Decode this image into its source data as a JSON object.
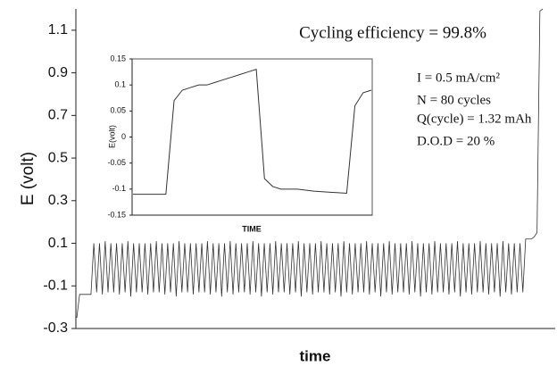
{
  "chart_data": [
    {
      "type": "line",
      "y_label": "E (volt)",
      "x_label": "time",
      "color": "#333333",
      "annotations": [
        "Cycling efficiency = 99.8%",
        "I = 0.5 mA/cm²",
        "N = 80 cycles",
        "Q(cycle) = 1.32 mAh",
        "D.O.D = 20 %"
      ],
      "ylim": [
        -0.3,
        1.2
      ],
      "yticks": [
        -0.3,
        -0.1,
        0.1,
        0.3,
        0.5,
        0.7,
        0.9,
        1.1
      ],
      "values": [
        -0.25,
        -0.14,
        -0.14,
        -0.14,
        -0.14,
        -0.14,
        0.1,
        -0.13,
        0.1,
        -0.14,
        0.11,
        -0.13,
        0.1,
        -0.13,
        0.1,
        -0.14,
        0.1,
        -0.13,
        0.11,
        -0.15,
        0.1,
        -0.13,
        0.1,
        -0.13,
        0.1,
        -0.14,
        0.1,
        -0.13,
        0.11,
        -0.13,
        0.1,
        -0.14,
        0.1,
        -0.13,
        0.1,
        -0.15,
        0.11,
        -0.13,
        0.1,
        -0.13,
        0.1,
        -0.14,
        0.1,
        -0.13,
        0.1,
        -0.13,
        0.11,
        -0.14,
        0.1,
        -0.13,
        0.1,
        -0.15,
        0.1,
        -0.13,
        0.11,
        -0.14,
        0.1,
        -0.13,
        0.1,
        -0.13,
        0.1,
        -0.14,
        0.11,
        -0.13,
        0.1,
        -0.15,
        0.1,
        -0.13,
        0.1,
        -0.14,
        0.11,
        -0.13,
        0.1,
        -0.13,
        0.1,
        -0.14,
        0.1,
        -0.13,
        0.11,
        -0.15,
        0.1,
        -0.13,
        0.1,
        -0.14,
        0.1,
        -0.13,
        0.11,
        -0.13,
        0.1,
        -0.14,
        0.1,
        -0.13,
        0.1,
        -0.15,
        0.11,
        -0.13,
        0.1,
        -0.14,
        0.1,
        -0.13,
        0.1,
        -0.13,
        0.11,
        -0.14,
        0.1,
        -0.13,
        0.1,
        -0.15,
        0.1,
        -0.13,
        0.11,
        -0.14,
        0.1,
        -0.13,
        0.1,
        -0.13,
        0.1,
        -0.14,
        0.11,
        -0.13,
        0.1,
        -0.15,
        0.1,
        -0.13,
        0.1,
        -0.14,
        0.11,
        -0.13,
        0.1,
        -0.13,
        0.1,
        -0.14,
        0.1,
        -0.13,
        0.11,
        -0.15,
        0.1,
        -0.13,
        0.1,
        -0.14,
        0.1,
        -0.13,
        0.11,
        -0.13,
        0.1,
        -0.14,
        0.1,
        -0.13,
        0.1,
        -0.15,
        0.11,
        -0.13,
        0.1,
        -0.14,
        0.1,
        -0.13,
        0.1,
        -0.13,
        0.12,
        0.12,
        0.12,
        0.13,
        0.15,
        1.19,
        1.2
      ]
    },
    {
      "type": "line",
      "y_label": "E(volt)",
      "x_label": "TIME",
      "color": "#333333",
      "ylim": [
        -0.15,
        0.15
      ],
      "yticks": [
        -0.15,
        -0.1,
        -0.05,
        0,
        0.05,
        0.1,
        0.15
      ],
      "values": [
        -0.11,
        -0.11,
        -0.11,
        -0.11,
        -0.11,
        0.07,
        0.09,
        0.095,
        0.1,
        0.1,
        0.105,
        0.11,
        0.115,
        0.12,
        0.125,
        0.13,
        -0.08,
        -0.095,
        -0.1,
        -0.1,
        -0.1,
        -0.102,
        -0.104,
        -0.105,
        -0.106,
        -0.107,
        -0.108,
        0.06,
        0.085,
        0.09
      ]
    }
  ]
}
